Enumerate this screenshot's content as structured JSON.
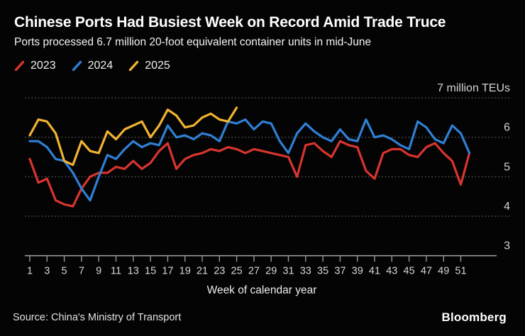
{
  "header": {
    "title": "Chinese Ports Had Busiest Week on Record Amid Trade Truce",
    "subtitle": "Ports processed 6.7 million 20-foot equivalent container units in mid-June"
  },
  "legend": {
    "items": [
      {
        "label": "2023",
        "color": "#d8352f"
      },
      {
        "label": "2024",
        "color": "#2f7fd4"
      },
      {
        "label": "2025",
        "color": "#f0b232"
      }
    ]
  },
  "footer": {
    "source": "Source: China's Ministry of Transport",
    "logo": "Bloomberg"
  },
  "colors": {
    "background": "#040404",
    "gridline": "#4f4f4f",
    "axis": "#9a9a9a",
    "tick_label": "#d6d6d6"
  },
  "chart_data": {
    "type": "line",
    "title": "Chinese Ports Had Busiest Week on Record Amid Trade Truce",
    "subtitle": "Ports processed 6.7 million 20-foot equivalent container units in mid-June",
    "xlabel": "Week of calendar year",
    "unit_label": "7 million TEUs",
    "ylim": [
      3,
      7
    ],
    "xlim": [
      1,
      53
    ],
    "grid": "horizontal-dotted",
    "legend_position": "top-left",
    "x_ticks": [
      1,
      3,
      5,
      7,
      9,
      11,
      13,
      15,
      17,
      19,
      21,
      23,
      25,
      27,
      29,
      31,
      33,
      35,
      37,
      39,
      41,
      43,
      45,
      47,
      49,
      51
    ],
    "y_gridlines": [
      7,
      6,
      5,
      4
    ],
    "y_tick_labels": [
      {
        "value": 7,
        "label": "7 million TEUs"
      },
      {
        "value": 6,
        "label": "6"
      },
      {
        "value": 5,
        "label": "5"
      },
      {
        "value": 4,
        "label": "4"
      },
      {
        "value": 3,
        "label": "3"
      }
    ],
    "series": [
      {
        "name": "2023",
        "color": "#d8352f",
        "x_start": 1,
        "values": [
          5.45,
          4.85,
          4.95,
          4.4,
          4.3,
          4.25,
          4.7,
          5.0,
          5.1,
          5.1,
          5.25,
          5.2,
          5.4,
          5.2,
          5.35,
          5.65,
          5.85,
          5.2,
          5.45,
          5.55,
          5.6,
          5.7,
          5.65,
          5.75,
          5.7,
          5.6,
          5.7,
          5.65,
          5.6,
          5.55,
          5.5,
          5.0,
          5.8,
          5.85,
          5.65,
          5.5,
          5.9,
          5.8,
          5.75,
          5.15,
          4.95,
          5.6,
          5.7,
          5.7,
          5.55,
          5.5,
          5.75,
          5.85,
          5.6,
          5.4,
          4.8,
          5.6
        ]
      },
      {
        "name": "2024",
        "color": "#2f7fd4",
        "x_start": 1,
        "values": [
          5.9,
          5.9,
          5.75,
          5.45,
          5.4,
          5.1,
          4.7,
          4.4,
          5.0,
          5.55,
          5.45,
          5.7,
          5.9,
          5.75,
          5.85,
          5.8,
          6.3,
          6.0,
          6.05,
          5.95,
          6.1,
          6.05,
          5.9,
          6.4,
          6.35,
          6.45,
          6.2,
          6.4,
          6.35,
          5.9,
          5.6,
          6.1,
          6.35,
          6.15,
          6.0,
          5.9,
          6.2,
          5.95,
          5.9,
          6.45,
          6.0,
          6.05,
          5.95,
          5.8,
          5.7,
          6.4,
          6.25,
          5.95,
          5.85,
          6.3,
          6.1,
          5.6
        ]
      },
      {
        "name": "2025",
        "color": "#f0b232",
        "x_start": 1,
        "values": [
          6.05,
          6.45,
          6.4,
          6.1,
          5.4,
          5.3,
          5.9,
          5.65,
          5.6,
          6.15,
          5.95,
          6.2,
          6.3,
          6.4,
          6.0,
          6.3,
          6.7,
          6.55,
          6.25,
          6.3,
          6.5,
          6.6,
          6.45,
          6.4,
          6.75
        ]
      }
    ]
  }
}
